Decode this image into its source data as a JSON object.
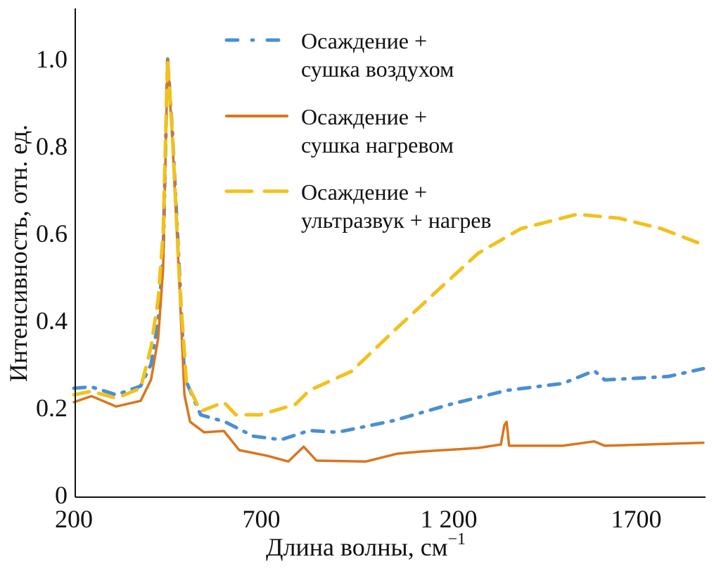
{
  "chart_data": {
    "type": "line",
    "title": "",
    "xlabel": "Длина волны, см",
    "xlabel_superscript": "−1",
    "ylabel": "Интенсивность, отн. ед.",
    "xlim": [
      200,
      1885
    ],
    "ylim": [
      0,
      1.12
    ],
    "xticks": [
      200,
      700,
      1200,
      1700
    ],
    "xtick_labels": [
      "200",
      "700",
      "1 200",
      "1700"
    ],
    "yticks": [
      0,
      0.2,
      0.4,
      0.6,
      0.8,
      1.0
    ],
    "ytick_labels": [
      "0",
      "0.2",
      "0.4",
      "0.6",
      "0.8",
      "1.0"
    ],
    "grid": false,
    "legend_placement": "top-center",
    "series": [
      {
        "name": "Осаждение + сушка воздухом",
        "legend_lines": [
          "Осаждение +",
          "сушка воздухом"
        ],
        "color": "#4a8fd4",
        "style": "dash-dot",
        "x": [
          200,
          247,
          313,
          378,
          406,
          425,
          438,
          450,
          463,
          481,
          495,
          538,
          603,
          679,
          753,
          828,
          903,
          1054,
          1204,
          1354,
          1504,
          1588,
          1616,
          1785,
          1879
        ],
        "y": [
          0.245,
          0.248,
          0.23,
          0.25,
          0.3,
          0.4,
          0.55,
          1.0,
          0.83,
          0.52,
          0.27,
          0.184,
          0.168,
          0.135,
          0.127,
          0.148,
          0.144,
          0.171,
          0.208,
          0.24,
          0.256,
          0.285,
          0.264,
          0.272,
          0.29
        ]
      },
      {
        "name": "Осаждение + сушка нагревом",
        "legend_lines": [
          "Осаждение +",
          "сушка нагревом"
        ],
        "color": "#d9761e",
        "style": "solid",
        "x": [
          200,
          247,
          313,
          378,
          406,
          425,
          438,
          450,
          463,
          481,
          495,
          510,
          547,
          600,
          641,
          716,
          772,
          813,
          847,
          979,
          1063,
          1129,
          1279,
          1339,
          1348,
          1354,
          1361,
          1504,
          1588,
          1616,
          1879
        ],
        "y": [
          0.213,
          0.227,
          0.203,
          0.216,
          0.265,
          0.36,
          0.52,
          1.0,
          0.81,
          0.49,
          0.23,
          0.168,
          0.144,
          0.147,
          0.103,
          0.09,
          0.077,
          0.111,
          0.079,
          0.077,
          0.095,
          0.1,
          0.108,
          0.116,
          0.16,
          0.168,
          0.113,
          0.113,
          0.123,
          0.113,
          0.12
        ]
      },
      {
        "name": "Осаждение + ультразвук + нагрев",
        "legend_lines": [
          "Осаждение +",
          "ультразвук + нагрев"
        ],
        "color": "#f2c11c",
        "style": "dashed",
        "x": [
          200,
          247,
          313,
          378,
          406,
          425,
          438,
          450,
          463,
          481,
          500,
          538,
          600,
          632,
          697,
          791,
          828,
          941,
          1054,
          1166,
          1279,
          1392,
          1542,
          1654,
          1767,
          1879
        ],
        "y": [
          0.23,
          0.238,
          0.222,
          0.245,
          0.34,
          0.45,
          0.6,
          1.0,
          0.82,
          0.5,
          0.26,
          0.192,
          0.213,
          0.184,
          0.184,
          0.208,
          0.24,
          0.284,
          0.377,
          0.466,
          0.555,
          0.611,
          0.644,
          0.635,
          0.611,
          0.574
        ]
      }
    ]
  }
}
